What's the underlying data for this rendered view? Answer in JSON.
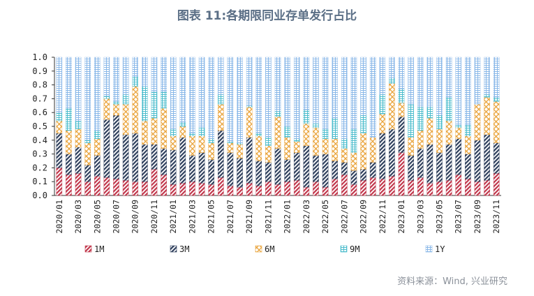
{
  "title": "图表 11:各期限同业存单发行占比",
  "source": "资料来源：Wind, 兴业研究",
  "chart_data": {
    "type": "bar",
    "stacked": true,
    "ylim": [
      0,
      1
    ],
    "yticks": [
      "0.0",
      "0.1",
      "0.2",
      "0.3",
      "0.4",
      "0.5",
      "0.6",
      "0.7",
      "0.8",
      "0.9",
      "1.0"
    ],
    "legend_position": "bottom",
    "categories": [
      "2020/01",
      "2020/02",
      "2020/03",
      "2020/04",
      "2020/05",
      "2020/06",
      "2020/07",
      "2020/08",
      "2020/09",
      "2020/10",
      "2020/11",
      "2020/12",
      "2021/01",
      "2021/02",
      "2021/03",
      "2021/04",
      "2021/05",
      "2021/06",
      "2021/07",
      "2021/08",
      "2021/09",
      "2021/10",
      "2021/11",
      "2021/12",
      "2022/01",
      "2022/02",
      "2022/03",
      "2022/04",
      "2022/05",
      "2022/06",
      "2022/07",
      "2022/08",
      "2022/09",
      "2022/10",
      "2022/11",
      "2022/12",
      "2023/01",
      "2023/02",
      "2023/03",
      "2023/04",
      "2023/05",
      "2023/06",
      "2023/07",
      "2023/08",
      "2023/09",
      "2023/10",
      "2023/11"
    ],
    "tick_labels": [
      "2020/01",
      "2020/03",
      "2020/05",
      "2020/07",
      "2020/09",
      "2020/11",
      "2021/01",
      "2021/03",
      "2021/05",
      "2021/07",
      "2021/09",
      "2021/11",
      "2022/01",
      "2022/03",
      "2022/05",
      "2022/07",
      "2022/09",
      "2022/11",
      "2023/01",
      "2023/03",
      "2023/05",
      "2023/07",
      "2023/09",
      "2023/11"
    ],
    "series": [
      {
        "name": "1M",
        "pattern": "diag-hatch",
        "color": "#c0354a",
        "values": [
          0.2,
          0.15,
          0.16,
          0.1,
          0.14,
          0.13,
          0.12,
          0.11,
          0.1,
          0.1,
          0.19,
          0.15,
          0.08,
          0.09,
          0.1,
          0.09,
          0.08,
          0.13,
          0.07,
          0.06,
          0.09,
          0.07,
          0.1,
          0.08,
          0.1,
          0.11,
          0.06,
          0.1,
          0.06,
          0.12,
          0.15,
          0.08,
          0.11,
          0.13,
          0.12,
          0.14,
          0.31,
          0.11,
          0.13,
          0.09,
          0.1,
          0.11,
          0.15,
          0.12,
          0.1,
          0.11,
          0.16
        ]
      },
      {
        "name": "3M",
        "pattern": "diag-hatch",
        "color": "#2e3f5c",
        "values": [
          0.25,
          0.15,
          0.19,
          0.12,
          0.15,
          0.42,
          0.46,
          0.33,
          0.35,
          0.27,
          0.18,
          0.19,
          0.25,
          0.33,
          0.19,
          0.22,
          0.18,
          0.34,
          0.24,
          0.21,
          0.33,
          0.18,
          0.14,
          0.26,
          0.16,
          0.2,
          0.3,
          0.19,
          0.24,
          0.13,
          0.09,
          0.1,
          0.08,
          0.11,
          0.33,
          0.34,
          0.26,
          0.18,
          0.21,
          0.28,
          0.21,
          0.26,
          0.26,
          0.18,
          0.3,
          0.33,
          0.22
        ]
      },
      {
        "name": "6M",
        "pattern": "cross-hatch",
        "color": "#e9a33a",
        "values": [
          0.09,
          0.17,
          0.13,
          0.16,
          0.12,
          0.15,
          0.08,
          0.22,
          0.34,
          0.17,
          0.19,
          0.29,
          0.1,
          0.08,
          0.14,
          0.12,
          0.12,
          0.19,
          0.07,
          0.1,
          0.22,
          0.18,
          0.12,
          0.23,
          0.16,
          0.08,
          0.16,
          0.2,
          0.11,
          0.16,
          0.1,
          0.13,
          0.26,
          0.18,
          0.14,
          0.33,
          0.1,
          0.13,
          0.13,
          0.19,
          0.17,
          0.17,
          0.08,
          0.13,
          0.26,
          0.27,
          0.3
        ]
      },
      {
        "name": "9M",
        "pattern": "grid-hatch",
        "color": "#4bbccc",
        "values": [
          0.06,
          0.16,
          0.06,
          0.02,
          0.06,
          0.02,
          0.02,
          0.07,
          0.07,
          0.25,
          0.19,
          0.12,
          0.05,
          0.03,
          0.02,
          0.06,
          0.03,
          0.07,
          0.01,
          0.01,
          0.01,
          0.02,
          0.06,
          0.04,
          0.08,
          0.02,
          0.1,
          0.03,
          0.07,
          0.15,
          0.07,
          0.17,
          0.13,
          0.0,
          0.14,
          0.04,
          0.1,
          0.24,
          0.17,
          0.08,
          0.1,
          0.17,
          0.02,
          0.08,
          0.0,
          0.02,
          0.03
        ]
      },
      {
        "name": "1Y",
        "pattern": "grid-hatch",
        "color": "#8ab8e8",
        "values": [
          0.4,
          0.37,
          0.46,
          0.6,
          0.53,
          0.28,
          0.32,
          0.27,
          0.14,
          0.21,
          0.25,
          0.25,
          0.52,
          0.47,
          0.55,
          0.51,
          0.59,
          0.27,
          0.61,
          0.62,
          0.35,
          0.55,
          0.58,
          0.39,
          0.5,
          0.59,
          0.38,
          0.48,
          0.52,
          0.44,
          0.59,
          0.52,
          0.42,
          0.58,
          0.27,
          0.15,
          0.23,
          0.34,
          0.36,
          0.36,
          0.42,
          0.29,
          0.49,
          0.49,
          0.34,
          0.27,
          0.29
        ]
      }
    ]
  }
}
